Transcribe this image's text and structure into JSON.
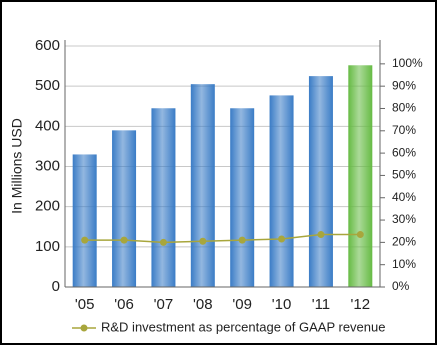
{
  "chart_data": {
    "type": "bar",
    "y_label": "In Millions USD",
    "categories": [
      "'05",
      "'06",
      "'07",
      "'08",
      "'09",
      "'10",
      "'11",
      "'12"
    ],
    "values": [
      330,
      390,
      445,
      505,
      445,
      477,
      525,
      552
    ],
    "colors": [
      "#3a7cc6",
      "#3a7cc6",
      "#3a7cc6",
      "#3a7cc6",
      "#3a7cc6",
      "#3a7cc6",
      "#3a7cc6",
      "#66bb44"
    ],
    "ylim": [
      0,
      600
    ],
    "yticks": [
      0,
      100,
      200,
      300,
      400,
      500,
      600
    ],
    "grid": true,
    "line_series": {
      "name": "R&D investment as percentage of GAAP revenue",
      "color": "#a8a63c",
      "axis": "y2",
      "values": [
        21,
        21,
        20,
        20.5,
        21,
        21.5,
        23.5,
        23.5
      ]
    },
    "y2lim": [
      0,
      108
    ],
    "y2ticks": [
      {
        "value": 0,
        "label": "0%"
      },
      {
        "value": 10,
        "label": "10%"
      },
      {
        "value": 20,
        "label": "20%"
      },
      {
        "value": 30,
        "label": "30%"
      },
      {
        "value": 40,
        "label": "40%"
      },
      {
        "value": 50,
        "label": "50%"
      },
      {
        "value": 60,
        "label": "60%"
      },
      {
        "value": 70,
        "label": "70%"
      },
      {
        "value": 80,
        "label": "80%"
      },
      {
        "value": 90,
        "label": "90%"
      },
      {
        "value": 100,
        "label": "100%"
      }
    ],
    "legend": "bottom"
  }
}
